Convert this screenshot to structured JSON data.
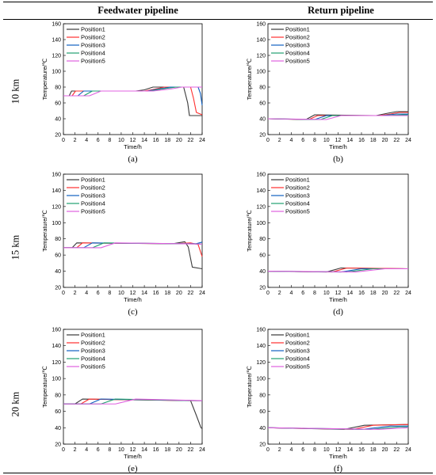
{
  "headers": {
    "columns": [
      "Feedwater pipeline",
      "Return pipeline"
    ],
    "rows": [
      "10 km",
      "15 km",
      "20 km"
    ]
  },
  "chart_data": [
    {
      "type": "line",
      "panel_label": "(a)",
      "column": "Feedwater pipeline",
      "row": "10 km",
      "xlabel": "Time/h",
      "ylabel": "Temperature/℃",
      "xlim": [
        0,
        24
      ],
      "ylim": [
        20,
        160
      ],
      "xticks": [
        "0",
        "2",
        "4",
        "6",
        "8",
        "10",
        "12",
        "14",
        "16",
        "18",
        "20",
        "22",
        "24"
      ],
      "yticks": [
        "20",
        "40",
        "60",
        "80",
        "100",
        "120",
        "140",
        "160"
      ],
      "legend_position": "top-left",
      "series": [
        {
          "name": "Position1",
          "color": "#3a3a3a",
          "x": [
            0,
            1,
            1.4,
            12.5,
            14,
            15.5,
            20.8,
            21.5,
            21.8,
            24
          ],
          "y": [
            69,
            69,
            75,
            75,
            76.5,
            80,
            80,
            60,
            44,
            44
          ]
        },
        {
          "name": "Position2",
          "color": "#ff3030",
          "x": [
            0,
            1.5,
            2.1,
            14,
            15.5,
            17.5,
            22,
            22.5,
            23,
            24
          ],
          "y": [
            69,
            69,
            75,
            75,
            77,
            80,
            80,
            66,
            48,
            45
          ]
        },
        {
          "name": "Position3",
          "color": "#1060c0",
          "x": [
            0,
            2.5,
            3.5,
            14.5,
            16,
            18.5,
            23.3,
            23.7,
            24
          ],
          "y": [
            69,
            69,
            75,
            75,
            77,
            80,
            80,
            72,
            57
          ]
        },
        {
          "name": "Position4",
          "color": "#20a070",
          "x": [
            0,
            3.5,
            5,
            15,
            17,
            19.5,
            24
          ],
          "y": [
            69,
            69,
            75,
            75,
            77.5,
            80,
            80
          ]
        },
        {
          "name": "Position5",
          "color": "#e060e0",
          "x": [
            0,
            4.5,
            6.5,
            15.5,
            18.5,
            20.5,
            24
          ],
          "y": [
            69,
            69,
            75,
            75,
            77.5,
            80,
            80
          ]
        }
      ]
    },
    {
      "type": "line",
      "panel_label": "(b)",
      "column": "Return pipeline",
      "row": "10 km",
      "xlabel": "Time/h",
      "ylabel": "Temperature/℃",
      "xlim": [
        0,
        24
      ],
      "ylim": [
        20,
        160
      ],
      "xticks": [
        "0",
        "2",
        "4",
        "6",
        "8",
        "10",
        "12",
        "14",
        "16",
        "18",
        "20",
        "22",
        "24"
      ],
      "yticks": [
        "20",
        "40",
        "60",
        "80",
        "100",
        "120",
        "140",
        "160"
      ],
      "legend_position": "top-left",
      "series": [
        {
          "name": "Position1",
          "color": "#3a3a3a",
          "x": [
            0,
            6.5,
            8,
            18.5,
            20.5,
            22,
            24
          ],
          "y": [
            40,
            39,
            45,
            44,
            47,
            49,
            49
          ]
        },
        {
          "name": "Position2",
          "color": "#ff3030",
          "x": [
            0,
            7,
            8.5,
            19,
            21,
            22.5,
            24
          ],
          "y": [
            40,
            39,
            44,
            44,
            46,
            48,
            48
          ]
        },
        {
          "name": "Position3",
          "color": "#1060c0",
          "x": [
            0,
            8,
            10,
            19.5,
            22,
            24
          ],
          "y": [
            40,
            39,
            44,
            44,
            46,
            46
          ]
        },
        {
          "name": "Position4",
          "color": "#20a070",
          "x": [
            0,
            9,
            11,
            20,
            23,
            24
          ],
          "y": [
            40,
            39,
            44,
            44,
            45,
            45
          ]
        },
        {
          "name": "Position5",
          "color": "#e060e0",
          "x": [
            0,
            10,
            12.5,
            21,
            24
          ],
          "y": [
            40,
            39,
            44,
            44,
            44
          ]
        }
      ]
    },
    {
      "type": "line",
      "panel_label": "(c)",
      "column": "Feedwater pipeline",
      "row": "15 km",
      "xlabel": "Time/h",
      "ylabel": "Temperature/℃",
      "xlim": [
        0,
        24
      ],
      "ylim": [
        20,
        160
      ],
      "xticks": [
        "0",
        "2",
        "4",
        "6",
        "8",
        "10",
        "12",
        "14",
        "16",
        "18",
        "20",
        "22",
        "24"
      ],
      "yticks": [
        "20",
        "40",
        "60",
        "80",
        "100",
        "120",
        "140",
        "160"
      ],
      "legend_position": "top-left",
      "series": [
        {
          "name": "Position1",
          "color": "#3a3a3a",
          "x": [
            0,
            1.5,
            2.3,
            19,
            21,
            21.6,
            22.3,
            24
          ],
          "y": [
            69,
            69,
            75,
            74,
            76.5,
            70,
            45,
            43
          ]
        },
        {
          "name": "Position2",
          "color": "#ff3030",
          "x": [
            0,
            2.3,
            3.3,
            19.5,
            22,
            23.3,
            24
          ],
          "y": [
            69,
            69,
            75,
            74,
            75,
            73,
            58
          ]
        },
        {
          "name": "Position3",
          "color": "#1060c0",
          "x": [
            0,
            3.5,
            5,
            20,
            23,
            24
          ],
          "y": [
            69,
            69,
            75,
            74,
            74,
            76
          ]
        },
        {
          "name": "Position4",
          "color": "#20a070",
          "x": [
            0,
            5,
            7,
            20,
            24
          ],
          "y": [
            69,
            69,
            75,
            74,
            73.5
          ]
        },
        {
          "name": "Position5",
          "color": "#e060e0",
          "x": [
            0,
            6.5,
            9,
            20,
            24
          ],
          "y": [
            69,
            69,
            75,
            74,
            73.5
          ]
        }
      ]
    },
    {
      "type": "line",
      "panel_label": "(d)",
      "column": "Return pipeline",
      "row": "15 km",
      "xlabel": "Time/h",
      "ylabel": "Temperature/℃",
      "xlim": [
        0,
        24
      ],
      "ylim": [
        20,
        160
      ],
      "xticks": [
        "0",
        "2",
        "4",
        "6",
        "8",
        "10",
        "12",
        "14",
        "16",
        "18",
        "20",
        "22",
        "24"
      ],
      "yticks": [
        "20",
        "40",
        "60",
        "80",
        "100",
        "120",
        "140",
        "160"
      ],
      "legend_position": "top-left",
      "series": [
        {
          "name": "Position1",
          "color": "#3a3a3a",
          "x": [
            0,
            10,
            12.5,
            24
          ],
          "y": [
            40,
            39,
            44,
            43
          ]
        },
        {
          "name": "Position2",
          "color": "#ff3030",
          "x": [
            0,
            11,
            13.5,
            24
          ],
          "y": [
            40,
            39,
            44,
            43
          ]
        },
        {
          "name": "Position3",
          "color": "#1060c0",
          "x": [
            0,
            12.5,
            16,
            24
          ],
          "y": [
            40,
            39,
            43,
            43
          ]
        },
        {
          "name": "Position4",
          "color": "#20a070",
          "x": [
            0,
            13.5,
            18,
            24
          ],
          "y": [
            40,
            39,
            43,
            43
          ]
        },
        {
          "name": "Position5",
          "color": "#e060e0",
          "x": [
            0,
            15,
            20,
            24
          ],
          "y": [
            40,
            39,
            43,
            43
          ]
        }
      ]
    },
    {
      "type": "line",
      "panel_label": "(e)",
      "column": "Feedwater pipeline",
      "row": "20 km",
      "xlabel": "Time/h",
      "ylabel": "Temperature/℃",
      "xlim": [
        0,
        24
      ],
      "ylim": [
        20,
        160
      ],
      "xticks": [
        "0",
        "2",
        "4",
        "6",
        "8",
        "10",
        "12",
        "14",
        "16",
        "18",
        "20",
        "22",
        "24"
      ],
      "yticks": [
        "20",
        "40",
        "60",
        "80",
        "100",
        "120",
        "140",
        "160"
      ],
      "legend_position": "top-left",
      "series": [
        {
          "name": "Position1",
          "color": "#3a3a3a",
          "x": [
            0,
            2,
            3.3,
            22,
            23,
            23.8,
            24
          ],
          "y": [
            69,
            69,
            75,
            73,
            55,
            40,
            39
          ]
        },
        {
          "name": "Position2",
          "color": "#ff3030",
          "x": [
            0,
            3,
            4.5,
            22.5,
            24
          ],
          "y": [
            69,
            69,
            75,
            73,
            73
          ]
        },
        {
          "name": "Position3",
          "color": "#1060c0",
          "x": [
            0,
            4.5,
            6.5,
            23,
            24
          ],
          "y": [
            69,
            69,
            75,
            73,
            73
          ]
        },
        {
          "name": "Position4",
          "color": "#20a070",
          "x": [
            0,
            6.5,
            9,
            23,
            24
          ],
          "y": [
            69,
            69,
            75,
            73,
            73
          ]
        },
        {
          "name": "Position5",
          "color": "#e060e0",
          "x": [
            0,
            9,
            12.5,
            24
          ],
          "y": [
            69,
            69,
            75,
            73
          ]
        }
      ]
    },
    {
      "type": "line",
      "panel_label": "(f)",
      "column": "Return pipeline",
      "row": "20 km",
      "xlabel": "Time/h",
      "ylabel": "Temperature/℃",
      "xlim": [
        0,
        24
      ],
      "ylim": [
        20,
        160
      ],
      "xticks": [
        "0",
        "2",
        "4",
        "6",
        "8",
        "10",
        "12",
        "14",
        "16",
        "18",
        "20",
        "22",
        "24"
      ],
      "yticks": [
        "20",
        "40",
        "60",
        "80",
        "100",
        "120",
        "140",
        "160"
      ],
      "legend_position": "top-left",
      "series": [
        {
          "name": "Position1",
          "color": "#3a3a3a",
          "x": [
            0,
            13,
            16.5,
            24
          ],
          "y": [
            40,
            38,
            43,
            44
          ]
        },
        {
          "name": "Position2",
          "color": "#ff3030",
          "x": [
            0,
            14.5,
            18,
            24
          ],
          "y": [
            40,
            38,
            43,
            44
          ]
        },
        {
          "name": "Position3",
          "color": "#1060c0",
          "x": [
            0,
            16,
            21,
            24
          ],
          "y": [
            40,
            38,
            42,
            42
          ]
        },
        {
          "name": "Position4",
          "color": "#20a070",
          "x": [
            0,
            17.5,
            22.5,
            24
          ],
          "y": [
            40,
            38,
            41,
            41
          ]
        },
        {
          "name": "Position5",
          "color": "#e060e0",
          "x": [
            0,
            19,
            24
          ],
          "y": [
            40,
            38,
            40
          ]
        }
      ]
    }
  ]
}
